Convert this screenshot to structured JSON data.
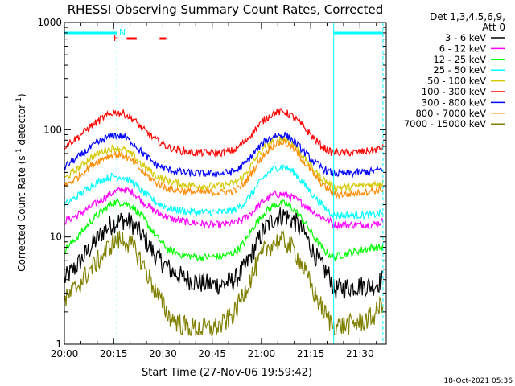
{
  "chart_data": {
    "type": "line",
    "title": "RHESSI Observing Summary Count Rates, Corrected",
    "xlabel": "Start Time (27-Nov-06 19:59:42)",
    "ylabel_parts": [
      "Corrected Count Rate (s",
      "-1",
      " detector",
      "-1",
      ")"
    ],
    "yscale": "log",
    "ylim": [
      1,
      1000
    ],
    "y_ticks": [
      {
        "value": 1,
        "label": "1"
      },
      {
        "value": 10,
        "label": "10"
      },
      {
        "value": 100,
        "label": "100"
      },
      {
        "value": 1000,
        "label": "1000"
      }
    ],
    "xlim_minutes": [
      0,
      98
    ],
    "x_ticks": [
      {
        "value": 0,
        "label": "20:00"
      },
      {
        "value": 15,
        "label": "20:15"
      },
      {
        "value": 30,
        "label": "20:30"
      },
      {
        "value": 45,
        "label": "20:45"
      },
      {
        "value": 60,
        "label": "21:00"
      },
      {
        "value": 75,
        "label": "21:15"
      },
      {
        "value": 90,
        "label": "21:30"
      }
    ],
    "legend": {
      "placement": "right",
      "header": [
        "Det 1,3,4,5,6,9,",
        "Att 0"
      ],
      "entries": [
        {
          "label": "3 - 6 keV",
          "color": "#000000"
        },
        {
          "label": "6 - 12 keV",
          "color": "#ff00ff"
        },
        {
          "label": "12 - 25 keV",
          "color": "#00ff00"
        },
        {
          "label": "25 - 50 keV",
          "color": "#00ffff"
        },
        {
          "label": "50 - 100 keV",
          "color": "#d4c800"
        },
        {
          "label": "100 - 300 keV",
          "color": "#ff0000"
        },
        {
          "label": "300 - 800 keV",
          "color": "#0000ff"
        },
        {
          "label": "800 - 7000 keV",
          "color": "#ff8c00"
        },
        {
          "label": "7000 - 15000 keV",
          "color": "#808000"
        }
      ]
    },
    "annotations": {
      "flags": [
        {
          "label": "N",
          "color": "#00ffff"
        },
        {
          "label": "F",
          "color": "#ff0000"
        }
      ],
      "flag_bars": [
        {
          "color": "#00ffff",
          "start": 0,
          "end": 16
        },
        {
          "color": "#00ffff",
          "start": 82,
          "end": 97
        },
        {
          "color": "#ff0000",
          "start": 19,
          "end": 22
        },
        {
          "color": "#ff0000",
          "start": 29,
          "end": 31
        }
      ],
      "vlines": [
        {
          "x": 16,
          "style": "dashed"
        },
        {
          "x": 97,
          "style": "dashed"
        },
        {
          "x": 0,
          "style": "solid"
        },
        {
          "x": 82,
          "style": "solid"
        }
      ]
    },
    "timestamp": "18-Oct-2021 05:36",
    "series": [
      {
        "name": "3 - 6 keV",
        "color": "#000000",
        "x": [
          0,
          4,
          8,
          12,
          15,
          18,
          21,
          24,
          28,
          32,
          36,
          40,
          44,
          48,
          52,
          55,
          58,
          61,
          64,
          67,
          70,
          73,
          76,
          79,
          81,
          82,
          86,
          90,
          94,
          97
        ],
        "y": [
          4,
          5.5,
          8,
          11.5,
          13.5,
          14.5,
          13,
          10,
          6.5,
          5,
          4.2,
          3.8,
          3.6,
          3.6,
          4,
          5.2,
          8,
          12,
          15,
          16,
          14,
          11,
          7,
          5,
          4.2,
          3.2,
          3.4,
          3.5,
          3.5,
          4
        ]
      },
      {
        "name": "6 - 12 keV",
        "color": "#ff00ff",
        "x": [
          0,
          4,
          8,
          12,
          15,
          18,
          21,
          24,
          28,
          32,
          36,
          40,
          44,
          48,
          52,
          55,
          58,
          61,
          64,
          67,
          70,
          73,
          76,
          79,
          81,
          82,
          86,
          90,
          94,
          97
        ],
        "y": [
          14,
          16,
          19,
          23,
          26,
          28,
          26,
          21,
          17,
          15,
          14,
          13.5,
          13,
          13,
          13.5,
          15,
          18,
          22,
          25,
          25,
          23,
          20,
          17,
          15,
          14,
          13,
          13,
          13,
          13,
          14
        ]
      },
      {
        "name": "12 - 25 keV",
        "color": "#00ff00",
        "x": [
          0,
          4,
          8,
          12,
          15,
          18,
          21,
          24,
          28,
          32,
          36,
          40,
          44,
          48,
          52,
          55,
          58,
          61,
          64,
          67,
          70,
          73,
          76,
          79,
          81,
          82,
          86,
          90,
          94,
          97
        ],
        "y": [
          7.5,
          10,
          14,
          18,
          21,
          21,
          19,
          15,
          10,
          7.5,
          6.8,
          6.5,
          6.5,
          6.6,
          7.2,
          9,
          13,
          17,
          20,
          20.5,
          18,
          14,
          10,
          7.5,
          6.8,
          6.5,
          7,
          7.5,
          8,
          8
        ]
      },
      {
        "name": "25 - 50 keV",
        "color": "#00ffff",
        "x": [
          0,
          4,
          8,
          12,
          15,
          18,
          21,
          24,
          28,
          32,
          36,
          40,
          44,
          48,
          52,
          55,
          58,
          61,
          64,
          67,
          70,
          73,
          76,
          79,
          81,
          82,
          86,
          90,
          94,
          97
        ],
        "y": [
          20,
          24,
          30,
          35,
          37,
          36,
          32,
          26,
          21,
          18.5,
          17.5,
          17,
          17,
          17,
          18,
          21,
          28,
          37,
          44,
          45,
          40,
          31,
          24,
          19,
          17,
          16,
          16,
          16,
          16,
          17
        ]
      },
      {
        "name": "50 - 100 keV",
        "color": "#d4c800",
        "x": [
          0,
          4,
          8,
          12,
          15,
          18,
          21,
          24,
          28,
          32,
          36,
          40,
          44,
          48,
          52,
          55,
          58,
          61,
          64,
          67,
          70,
          73,
          76,
          79,
          81,
          82,
          86,
          90,
          94,
          97
        ],
        "y": [
          35,
          43,
          55,
          64,
          68,
          66,
          57,
          46,
          37,
          33,
          31,
          30,
          30,
          30,
          32,
          38,
          52,
          70,
          82,
          83,
          72,
          55,
          42,
          34,
          31,
          29,
          29,
          30,
          31,
          32
        ]
      },
      {
        "name": "100 - 300 keV",
        "color": "#ff0000",
        "x": [
          0,
          4,
          8,
          12,
          15,
          18,
          21,
          24,
          28,
          32,
          36,
          40,
          44,
          48,
          52,
          55,
          58,
          61,
          64,
          67,
          70,
          73,
          76,
          79,
          81,
          82,
          86,
          90,
          94,
          97
        ],
        "y": [
          70,
          85,
          108,
          130,
          145,
          142,
          125,
          100,
          80,
          68,
          63,
          61,
          61,
          61,
          65,
          78,
          100,
          125,
          145,
          147,
          130,
          105,
          83,
          68,
          62,
          61,
          61,
          62,
          64,
          68
        ]
      },
      {
        "name": "300 - 800 keV",
        "color": "#0000ff",
        "x": [
          0,
          4,
          8,
          12,
          15,
          18,
          21,
          24,
          28,
          32,
          36,
          40,
          44,
          48,
          52,
          55,
          58,
          61,
          64,
          67,
          70,
          73,
          76,
          79,
          81,
          82,
          86,
          90,
          94,
          97
        ],
        "y": [
          45,
          55,
          68,
          82,
          89,
          87,
          75,
          60,
          47,
          42,
          40,
          39,
          39,
          39,
          41,
          48,
          62,
          78,
          88,
          90,
          78,
          62,
          50,
          43,
          40,
          39,
          39,
          40,
          41,
          43
        ]
      },
      {
        "name": "800 - 7000 keV",
        "color": "#ff8c00",
        "x": [
          0,
          4,
          8,
          12,
          15,
          18,
          21,
          24,
          28,
          32,
          36,
          40,
          44,
          48,
          52,
          55,
          58,
          61,
          64,
          67,
          70,
          73,
          76,
          79,
          81,
          82,
          86,
          90,
          94,
          97
        ],
        "y": [
          30,
          36,
          46,
          55,
          59,
          58,
          50,
          40,
          32,
          28,
          27,
          26,
          26,
          26,
          27,
          32,
          44,
          60,
          74,
          77,
          66,
          50,
          38,
          30,
          27,
          25,
          25,
          26,
          27,
          28
        ]
      },
      {
        "name": "7000 - 15000 keV",
        "color": "#808000",
        "x": [
          0,
          4,
          8,
          12,
          15,
          18,
          21,
          24,
          28,
          32,
          36,
          40,
          44,
          48,
          52,
          55,
          58,
          61,
          64,
          67,
          70,
          73,
          76,
          79,
          81,
          82,
          86,
          90,
          94,
          97
        ],
        "y": [
          2.5,
          3.5,
          5,
          7,
          9,
          9.5,
          8,
          5.5,
          3,
          1.8,
          1.5,
          1.4,
          1.4,
          1.5,
          2,
          3.2,
          5,
          7.5,
          9,
          9.2,
          7.5,
          5,
          3,
          2,
          1.6,
          1.5,
          1.5,
          1.6,
          1.8,
          2.5
        ]
      }
    ]
  }
}
